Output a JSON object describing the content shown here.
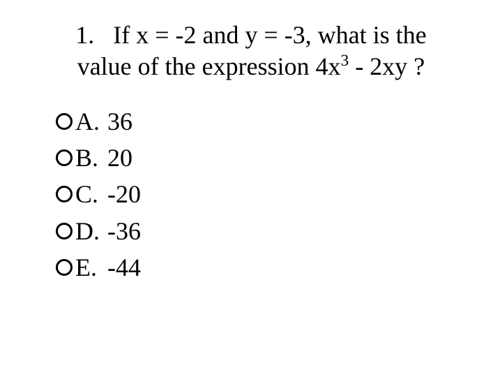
{
  "question": {
    "number": "1.",
    "line1_a": "If x = -2 and y = -3, what is the",
    "line2_a": "value of the expression 4x",
    "exp": "3",
    "line2_b": " - 2xy ?"
  },
  "options": [
    {
      "label": "A.",
      "value": "36"
    },
    {
      "label": "B.",
      "value": "20"
    },
    {
      "label": "C.",
      "value": "-20"
    },
    {
      "label": "D.",
      "value": "-36"
    },
    {
      "label": "E.",
      "value": "-44"
    }
  ],
  "colors": {
    "background": "#ffffff",
    "text": "#000000",
    "bullet_border": "#000000"
  },
  "typography": {
    "font_family": "Times New Roman",
    "question_fontsize": 36,
    "option_fontsize": 36
  }
}
